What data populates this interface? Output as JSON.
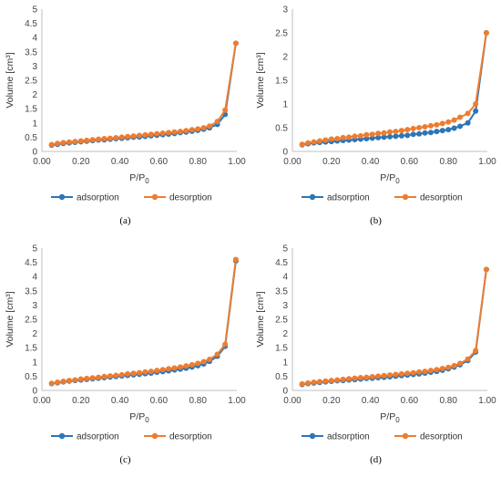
{
  "colors": {
    "adsorption": "#2e75b6",
    "desorption": "#ed7d31",
    "axis": "#bfbfbf"
  },
  "x_ticks": [
    "0.00",
    "0.20",
    "0.40",
    "0.60",
    "0.80",
    "1.00"
  ],
  "xlabel": "P/P",
  "xlabel_sub": "0",
  "ylabel": "Volume [cm³]",
  "legend": {
    "adsorption": "adsorption",
    "desorption": "desorption"
  },
  "chart_data": [
    {
      "panel": "a",
      "caption": "(a)",
      "type": "line",
      "xlim": [
        0,
        1.0
      ],
      "ylim": [
        0,
        5
      ],
      "y_ticks": [
        "0",
        "0.5",
        "1",
        "1.5",
        "2",
        "2.5",
        "3",
        "3.5",
        "4",
        "4.5",
        "5"
      ],
      "series": [
        {
          "name": "adsorption",
          "x": [
            0.05,
            0.08,
            0.11,
            0.14,
            0.17,
            0.2,
            0.23,
            0.26,
            0.29,
            0.32,
            0.35,
            0.38,
            0.41,
            0.44,
            0.47,
            0.5,
            0.53,
            0.56,
            0.59,
            0.62,
            0.65,
            0.68,
            0.71,
            0.74,
            0.77,
            0.8,
            0.83,
            0.86,
            0.9,
            0.94,
            0.995
          ],
          "y": [
            0.22,
            0.25,
            0.28,
            0.3,
            0.32,
            0.34,
            0.36,
            0.38,
            0.4,
            0.41,
            0.43,
            0.45,
            0.46,
            0.48,
            0.5,
            0.51,
            0.53,
            0.55,
            0.57,
            0.59,
            0.61,
            0.63,
            0.66,
            0.68,
            0.71,
            0.74,
            0.78,
            0.83,
            0.95,
            1.3,
            3.8
          ]
        },
        {
          "name": "desorption",
          "x": [
            0.05,
            0.08,
            0.11,
            0.14,
            0.17,
            0.2,
            0.23,
            0.26,
            0.29,
            0.32,
            0.35,
            0.38,
            0.41,
            0.44,
            0.47,
            0.5,
            0.53,
            0.56,
            0.59,
            0.62,
            0.65,
            0.68,
            0.71,
            0.74,
            0.77,
            0.8,
            0.83,
            0.86,
            0.9,
            0.94,
            0.995
          ],
          "y": [
            0.24,
            0.28,
            0.31,
            0.33,
            0.35,
            0.37,
            0.39,
            0.41,
            0.43,
            0.45,
            0.46,
            0.48,
            0.5,
            0.52,
            0.54,
            0.56,
            0.58,
            0.6,
            0.62,
            0.64,
            0.66,
            0.68,
            0.7,
            0.73,
            0.76,
            0.79,
            0.83,
            0.89,
            1.05,
            1.45,
            3.8
          ]
        }
      ]
    },
    {
      "panel": "b",
      "caption": "(b)",
      "type": "line",
      "xlim": [
        0,
        1.0
      ],
      "ylim": [
        0,
        3
      ],
      "y_ticks": [
        "0",
        "0.5",
        "1",
        "1.5",
        "2",
        "2.5",
        "3"
      ],
      "series": [
        {
          "name": "adsorption",
          "x": [
            0.05,
            0.08,
            0.11,
            0.14,
            0.17,
            0.2,
            0.23,
            0.26,
            0.29,
            0.32,
            0.35,
            0.38,
            0.41,
            0.44,
            0.47,
            0.5,
            0.53,
            0.56,
            0.59,
            0.62,
            0.65,
            0.68,
            0.71,
            0.74,
            0.77,
            0.8,
            0.83,
            0.86,
            0.9,
            0.94,
            0.995
          ],
          "y": [
            0.14,
            0.16,
            0.18,
            0.19,
            0.2,
            0.21,
            0.22,
            0.23,
            0.24,
            0.25,
            0.26,
            0.27,
            0.28,
            0.29,
            0.3,
            0.31,
            0.32,
            0.33,
            0.34,
            0.36,
            0.37,
            0.39,
            0.4,
            0.42,
            0.44,
            0.46,
            0.49,
            0.53,
            0.6,
            0.85,
            2.5
          ]
        },
        {
          "name": "desorption",
          "x": [
            0.05,
            0.08,
            0.11,
            0.14,
            0.17,
            0.2,
            0.23,
            0.26,
            0.29,
            0.32,
            0.35,
            0.38,
            0.41,
            0.44,
            0.47,
            0.5,
            0.53,
            0.56,
            0.59,
            0.62,
            0.65,
            0.68,
            0.71,
            0.74,
            0.77,
            0.8,
            0.83,
            0.86,
            0.9,
            0.94,
            0.995
          ],
          "y": [
            0.15,
            0.18,
            0.2,
            0.22,
            0.24,
            0.26,
            0.27,
            0.29,
            0.3,
            0.32,
            0.33,
            0.35,
            0.36,
            0.38,
            0.39,
            0.41,
            0.42,
            0.44,
            0.46,
            0.48,
            0.5,
            0.52,
            0.54,
            0.56,
            0.59,
            0.62,
            0.66,
            0.72,
            0.8,
            1.0,
            2.5
          ]
        }
      ]
    },
    {
      "panel": "c",
      "caption": "(c)",
      "type": "line",
      "xlim": [
        0,
        1.0
      ],
      "ylim": [
        0,
        5
      ],
      "y_ticks": [
        "0",
        "0.5",
        "1",
        "1.5",
        "2",
        "2.5",
        "3",
        "3.5",
        "4",
        "4.5",
        "5"
      ],
      "series": [
        {
          "name": "adsorption",
          "x": [
            0.05,
            0.08,
            0.11,
            0.14,
            0.17,
            0.2,
            0.23,
            0.26,
            0.29,
            0.32,
            0.35,
            0.38,
            0.41,
            0.44,
            0.47,
            0.5,
            0.53,
            0.56,
            0.59,
            0.62,
            0.65,
            0.68,
            0.71,
            0.74,
            0.77,
            0.8,
            0.83,
            0.86,
            0.9,
            0.94,
            0.995
          ],
          "y": [
            0.24,
            0.27,
            0.3,
            0.33,
            0.35,
            0.37,
            0.39,
            0.41,
            0.43,
            0.45,
            0.47,
            0.49,
            0.51,
            0.53,
            0.55,
            0.57,
            0.59,
            0.61,
            0.64,
            0.66,
            0.69,
            0.72,
            0.75,
            0.78,
            0.82,
            0.87,
            0.93,
            1.02,
            1.2,
            1.55,
            4.55
          ]
        },
        {
          "name": "desorption",
          "x": [
            0.05,
            0.08,
            0.11,
            0.14,
            0.17,
            0.2,
            0.23,
            0.26,
            0.29,
            0.32,
            0.35,
            0.38,
            0.41,
            0.44,
            0.47,
            0.5,
            0.53,
            0.56,
            0.59,
            0.62,
            0.65,
            0.68,
            0.71,
            0.74,
            0.77,
            0.8,
            0.83,
            0.86,
            0.9,
            0.94,
            0.995
          ],
          "y": [
            0.25,
            0.29,
            0.32,
            0.35,
            0.37,
            0.4,
            0.42,
            0.44,
            0.46,
            0.49,
            0.51,
            0.53,
            0.55,
            0.58,
            0.6,
            0.62,
            0.65,
            0.67,
            0.7,
            0.73,
            0.76,
            0.79,
            0.82,
            0.86,
            0.9,
            0.95,
            1.01,
            1.09,
            1.27,
            1.62,
            4.6
          ]
        }
      ]
    },
    {
      "panel": "d",
      "caption": "(d)",
      "type": "line",
      "xlim": [
        0,
        1.0
      ],
      "ylim": [
        0,
        5
      ],
      "y_ticks": [
        "0",
        "0.5",
        "1",
        "1.5",
        "2",
        "2.5",
        "3",
        "3.5",
        "4",
        "4.5",
        "5"
      ],
      "series": [
        {
          "name": "adsorption",
          "x": [
            0.05,
            0.08,
            0.11,
            0.14,
            0.17,
            0.2,
            0.23,
            0.26,
            0.29,
            0.32,
            0.35,
            0.38,
            0.41,
            0.44,
            0.47,
            0.5,
            0.53,
            0.56,
            0.59,
            0.62,
            0.65,
            0.68,
            0.71,
            0.74,
            0.77,
            0.8,
            0.83,
            0.86,
            0.9,
            0.94,
            0.995
          ],
          "y": [
            0.21,
            0.24,
            0.26,
            0.28,
            0.3,
            0.32,
            0.34,
            0.35,
            0.37,
            0.38,
            0.4,
            0.42,
            0.43,
            0.45,
            0.46,
            0.48,
            0.5,
            0.52,
            0.54,
            0.56,
            0.58,
            0.61,
            0.64,
            0.67,
            0.71,
            0.76,
            0.82,
            0.9,
            1.05,
            1.35,
            4.25
          ]
        },
        {
          "name": "desorption",
          "x": [
            0.05,
            0.08,
            0.11,
            0.14,
            0.17,
            0.2,
            0.23,
            0.26,
            0.29,
            0.32,
            0.35,
            0.38,
            0.41,
            0.44,
            0.47,
            0.5,
            0.53,
            0.56,
            0.59,
            0.62,
            0.65,
            0.68,
            0.71,
            0.74,
            0.77,
            0.8,
            0.83,
            0.86,
            0.9,
            0.94,
            0.995
          ],
          "y": [
            0.23,
            0.26,
            0.29,
            0.31,
            0.33,
            0.35,
            0.37,
            0.39,
            0.41,
            0.43,
            0.45,
            0.46,
            0.48,
            0.5,
            0.52,
            0.54,
            0.56,
            0.58,
            0.6,
            0.62,
            0.65,
            0.67,
            0.7,
            0.73,
            0.77,
            0.81,
            0.87,
            0.95,
            1.1,
            1.4,
            4.25
          ]
        }
      ]
    }
  ]
}
